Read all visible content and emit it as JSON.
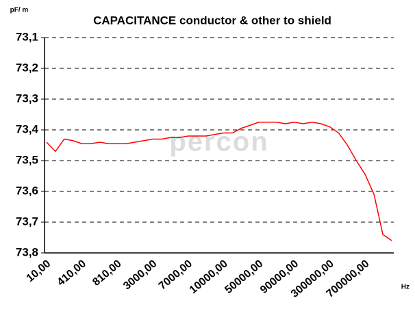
{
  "chart_data": {
    "type": "line",
    "title": "CAPACITANCE conductor & other  to shield",
    "y_unit": "pF/ m",
    "x_unit": "Hz",
    "watermark": "percon",
    "categories": [
      "10,00",
      null,
      null,
      null,
      "410,00",
      null,
      null,
      null,
      "810,00",
      null,
      null,
      null,
      "3000,00",
      null,
      null,
      null,
      "7000,00",
      null,
      null,
      null,
      "10000,00",
      null,
      null,
      null,
      "50000,00",
      null,
      null,
      null,
      "90000,00",
      null,
      null,
      null,
      "300000,00",
      null,
      null,
      null,
      "700000,00",
      null,
      null,
      null
    ],
    "series": [
      {
        "name": "capacitance",
        "color": "#ff0000",
        "values": [
          73.44,
          73.47,
          73.43,
          73.435,
          73.445,
          73.445,
          73.44,
          73.445,
          73.445,
          73.445,
          73.44,
          73.435,
          73.43,
          73.43,
          73.425,
          73.425,
          73.42,
          73.42,
          73.42,
          73.415,
          73.41,
          73.41,
          73.395,
          73.385,
          73.375,
          73.375,
          73.375,
          73.38,
          73.375,
          73.38,
          73.375,
          73.38,
          73.39,
          73.41,
          73.45,
          73.5,
          73.545,
          73.61,
          73.74,
          73.76
        ]
      }
    ],
    "ylim": [
      73.8,
      73.1
    ],
    "yticks": [
      {
        "value": 73.1,
        "label": "73,1"
      },
      {
        "value": 73.2,
        "label": "73,2"
      },
      {
        "value": 73.3,
        "label": "73,3"
      },
      {
        "value": 73.4,
        "label": "73,4"
      },
      {
        "value": 73.5,
        "label": "73,5"
      },
      {
        "value": 73.6,
        "label": "73,6"
      },
      {
        "value": 73.7,
        "label": "73,7"
      },
      {
        "value": 73.8,
        "label": "73,8"
      }
    ],
    "grid": true
  }
}
